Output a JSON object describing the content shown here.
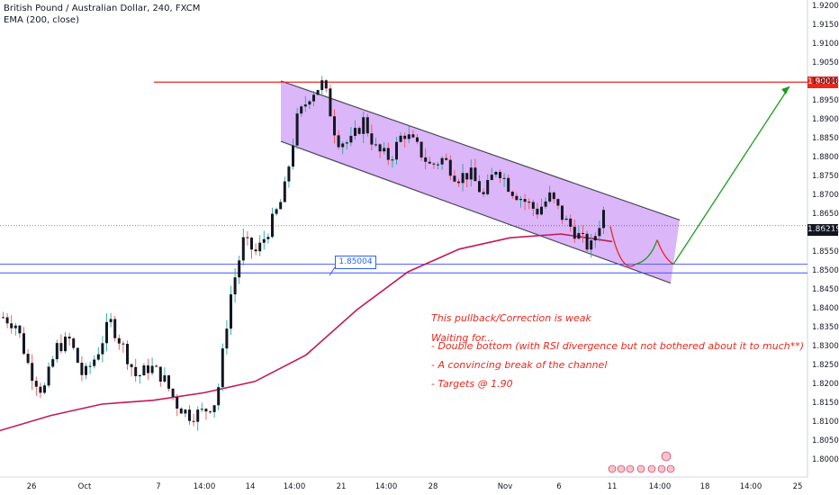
{
  "header": {
    "title": "British Pound / Australian Dollar, 240, FXCM",
    "indicator": "EMA (200, close)"
  },
  "price_labels": {
    "resistance": "1.90018",
    "current": "1.86219",
    "support_callout": "1.85004"
  },
  "annotations": {
    "line1": "This pullback/Correction is weak",
    "line2": "Waiting for...",
    "line3": "- Double bottom (with RSI divergence but not bothered about it to much**)",
    "line4": "- A convincing break of the channel",
    "line5": "- Targets @ 1.90"
  },
  "colors": {
    "candle_up": "#26a69a",
    "candle_down": "#ef5350",
    "candle_body": "#131722",
    "ema": "#c2185b",
    "resistance_line": "#e8281e",
    "support_lines": "#3f51ff",
    "channel_fill": "#cf9ef5",
    "target_arrow": "#1b9e1b",
    "price_box_red": "#e8281e",
    "price_box_dark": "#131722"
  },
  "chart_data": {
    "type": "candlestick",
    "y_axis": {
      "ticks": [
        "1.92000",
        "1.91500",
        "1.91000",
        "1.90500",
        "1.90000",
        "1.89500",
        "1.89000",
        "1.88500",
        "1.88000",
        "1.87500",
        "1.87000",
        "1.86500",
        "1.86000",
        "1.85500",
        "1.85000",
        "1.84500",
        "1.84000",
        "1.83500",
        "1.83000",
        "1.82500",
        "1.82000",
        "1.81500",
        "1.81000",
        "1.80500",
        "1.80000"
      ],
      "range": [
        1.7975,
        1.9225
      ]
    },
    "x_axis": {
      "ticks": [
        "26",
        "Oct",
        "7",
        "14:00",
        "14",
        "14:00",
        "21",
        "14:00",
        "28",
        "Nov",
        "6",
        "11",
        "14:00",
        "18",
        "14:00",
        "25"
      ]
    },
    "horizontal_levels": [
      {
        "name": "resistance",
        "value": 1.90018
      },
      {
        "name": "support-upper",
        "value": 1.852
      },
      {
        "name": "support-lower",
        "value": 1.8497
      }
    ],
    "current_price": 1.86219,
    "channel": {
      "upper": [
        [
          1.9005,
          "Oct 15"
        ],
        [
          1.8637,
          "Nov 13"
        ]
      ],
      "lower": [
        [
          1.8845,
          "Oct 15"
        ],
        [
          1.847,
          "Nov 13"
        ]
      ]
    },
    "ema_200": [
      1.808,
      1.812,
      1.815,
      1.816,
      1.818,
      1.821,
      1.828,
      1.84,
      1.85,
      1.856,
      1.859,
      1.86,
      1.858
    ],
    "candle_path": [
      1.838,
      1.836,
      1.824,
      1.818,
      1.83,
      1.832,
      1.822,
      1.828,
      1.837,
      1.83,
      1.822,
      1.825,
      1.822,
      1.815,
      1.812,
      1.813,
      1.816,
      1.843,
      1.858,
      1.855,
      1.862,
      1.87,
      1.89,
      1.897,
      1.9,
      1.885,
      1.884,
      1.89,
      1.882,
      1.88,
      1.887,
      1.883,
      1.878,
      1.88,
      1.875,
      1.876,
      1.87,
      1.878,
      1.872,
      1.869,
      1.866,
      1.87,
      1.864,
      1.86,
      1.856,
      1.866
    ],
    "projection": {
      "down_then_up": [
        1.862,
        1.852,
        1.857,
        1.852
      ],
      "target": 1.9
    }
  }
}
